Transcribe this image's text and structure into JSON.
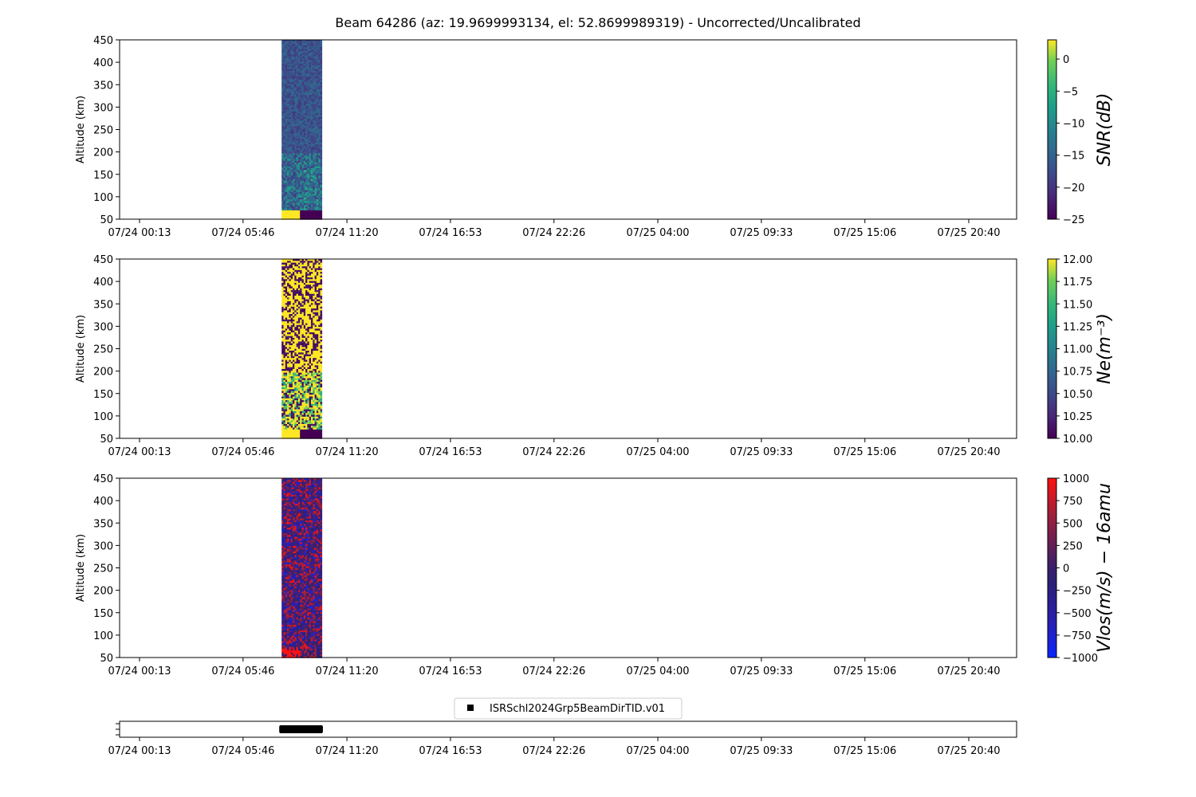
{
  "title": "Beam 64286 (az: 19.9699993134, el: 52.8699989319) - Uncorrected/Uncalibrated",
  "chart_data": [
    {
      "type": "heatmap",
      "panel": "snr",
      "ylabel": "Altitude (km)",
      "ylim": [
        50,
        450
      ],
      "yticks": [
        "50",
        "100",
        "150",
        "200",
        "250",
        "300",
        "350",
        "400",
        "450"
      ],
      "xticks": [
        "07/24 00:13",
        "07/24 05:46",
        "07/24 11:20",
        "07/24 16:53",
        "07/24 22:26",
        "07/25 04:00",
        "07/25 09:33",
        "07/25 15:06",
        "07/25 20:40"
      ],
      "data_time_range": [
        "07/24 07:50",
        "07/24 09:55"
      ],
      "colorbar": {
        "label": "SNR(dB)",
        "range": [
          -25,
          3
        ],
        "ticks": [
          "0",
          "−5",
          "−10",
          "−15",
          "−20",
          "−25"
        ],
        "colormap": "viridis"
      }
    },
    {
      "type": "heatmap",
      "panel": "ne",
      "ylabel": "Altitude (km)",
      "ylim": [
        50,
        450
      ],
      "yticks": [
        "50",
        "100",
        "150",
        "200",
        "250",
        "300",
        "350",
        "400",
        "450"
      ],
      "xticks": [
        "07/24 00:13",
        "07/24 05:46",
        "07/24 11:20",
        "07/24 16:53",
        "07/24 22:26",
        "07/25 04:00",
        "07/25 09:33",
        "07/25 15:06",
        "07/25 20:40"
      ],
      "data_time_range": [
        "07/24 07:50",
        "07/24 09:55"
      ],
      "colorbar": {
        "label": "Ne(m⁻³)",
        "range": [
          10.0,
          12.0
        ],
        "ticks": [
          "12.00",
          "11.75",
          "11.50",
          "11.25",
          "11.00",
          "10.75",
          "10.50",
          "10.25",
          "10.00"
        ],
        "colormap": "viridis"
      }
    },
    {
      "type": "heatmap",
      "panel": "vlos",
      "ylabel": "Altitude (km)",
      "ylim": [
        50,
        450
      ],
      "yticks": [
        "50",
        "100",
        "150",
        "200",
        "250",
        "300",
        "350",
        "400",
        "450"
      ],
      "xticks": [
        "07/24 00:13",
        "07/24 05:46",
        "07/24 11:20",
        "07/24 16:53",
        "07/24 22:26",
        "07/25 04:00",
        "07/25 09:33",
        "07/25 15:06",
        "07/25 20:40"
      ],
      "data_time_range": [
        "07/24 07:50",
        "07/24 09:55"
      ],
      "colorbar": {
        "label": "Vlos(m/s) − 16amu",
        "range": [
          -1000,
          1000
        ],
        "ticks": [
          "1000",
          "750",
          "500",
          "250",
          "0",
          "−250",
          "−500",
          "−750",
          "−1000"
        ],
        "colormap": "blue-purple-red"
      }
    },
    {
      "type": "scatter",
      "panel": "timeline",
      "series": [
        {
          "name": "ISRSchl2024Grp5BeamDirTID.v01",
          "x_range": [
            "07/24 07:50",
            "07/24 09:55"
          ],
          "color": "#000000"
        }
      ],
      "xticks": [
        "07/24 00:13",
        "07/24 05:46",
        "07/24 11:20",
        "07/24 16:53",
        "07/24 22:26",
        "07/25 04:00",
        "07/25 09:33",
        "07/25 15:06",
        "07/25 20:40"
      ],
      "legend": "top-center"
    }
  ]
}
